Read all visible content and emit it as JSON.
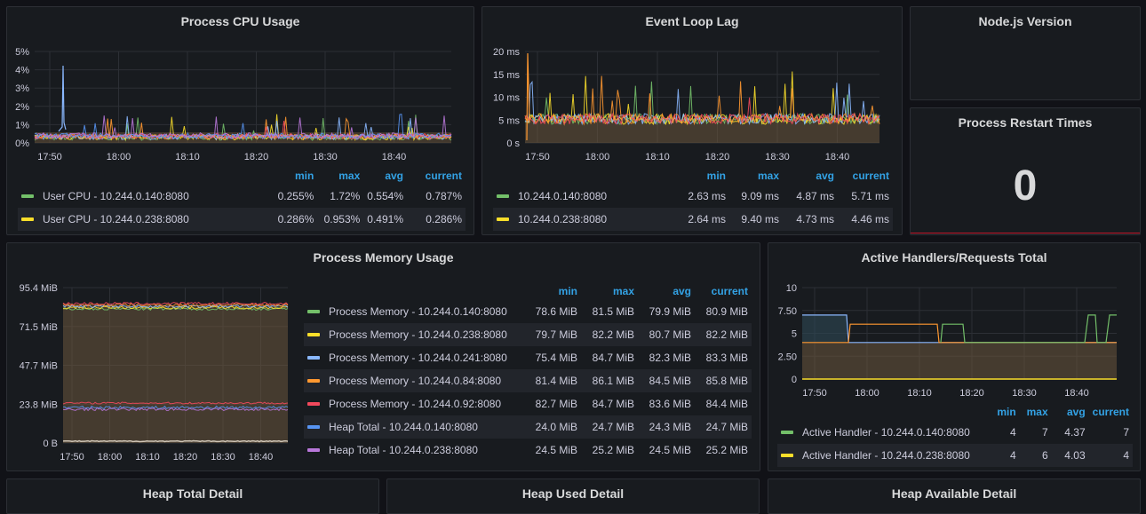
{
  "colors": {
    "green": "#73bf69",
    "yellow": "#fade2a",
    "cyan": "#8ab8ff",
    "orange": "#ff9830",
    "red": "#f2495c",
    "blue": "#5794f2",
    "purple": "#b877d9",
    "fillbrown": "#6b553c",
    "grid": "#2c2f35",
    "restart": "#c4162a"
  },
  "panels": {
    "cpu": {
      "title": "Process CPU Usage",
      "yticks": [
        "5%",
        "4%",
        "3%",
        "2%",
        "1%",
        "0%"
      ],
      "xticks": [
        "17:50",
        "18:00",
        "18:10",
        "18:20",
        "18:30",
        "18:40"
      ],
      "legend_headers": [
        "min",
        "max",
        "avg",
        "current"
      ],
      "legend": [
        {
          "name": "User CPU - 10.244.0.140:8080",
          "color": "green",
          "min": "0.255%",
          "max": "1.72%",
          "avg": "0.554%",
          "current": "0.787%"
        },
        {
          "name": "User CPU - 10.244.0.238:8080",
          "color": "yellow",
          "min": "0.286%",
          "max": "0.953%",
          "avg": "0.491%",
          "current": "0.286%"
        }
      ]
    },
    "lag": {
      "title": "Event Loop Lag",
      "yticks": [
        "20 ms",
        "15 ms",
        "10 ms",
        "5 ms",
        "0 s"
      ],
      "xticks": [
        "17:50",
        "18:00",
        "18:10",
        "18:20",
        "18:30",
        "18:40"
      ],
      "legend_headers": [
        "min",
        "max",
        "avg",
        "current"
      ],
      "legend": [
        {
          "name": "10.244.0.140:8080",
          "color": "green",
          "min": "2.63 ms",
          "max": "9.09 ms",
          "avg": "4.87 ms",
          "current": "5.71 ms"
        },
        {
          "name": "10.244.0.238:8080",
          "color": "yellow",
          "min": "2.64 ms",
          "max": "9.40 ms",
          "avg": "4.73 ms",
          "current": "4.46 ms"
        }
      ]
    },
    "nodever": {
      "title": "Node.js Version"
    },
    "restart": {
      "title": "Process Restart Times",
      "value": "0"
    },
    "mem": {
      "title": "Process Memory Usage",
      "yticks": [
        "95.4 MiB",
        "71.5 MiB",
        "47.7 MiB",
        "23.8 MiB",
        "0 B"
      ],
      "xticks": [
        "17:50",
        "18:00",
        "18:10",
        "18:20",
        "18:30",
        "18:40"
      ],
      "legend_headers": [
        "min",
        "max",
        "avg",
        "current"
      ],
      "legend": [
        {
          "name": "Process Memory - 10.244.0.140:8080",
          "color": "green",
          "min": "78.6 MiB",
          "max": "81.5 MiB",
          "avg": "79.9 MiB",
          "current": "80.9 MiB"
        },
        {
          "name": "Process Memory - 10.244.0.238:8080",
          "color": "yellow",
          "min": "79.7 MiB",
          "max": "82.2 MiB",
          "avg": "80.7 MiB",
          "current": "82.2 MiB"
        },
        {
          "name": "Process Memory - 10.244.0.241:8080",
          "color": "cyan",
          "min": "75.4 MiB",
          "max": "84.7 MiB",
          "avg": "82.3 MiB",
          "current": "83.3 MiB"
        },
        {
          "name": "Process Memory - 10.244.0.84:8080",
          "color": "orange",
          "min": "81.4 MiB",
          "max": "86.1 MiB",
          "avg": "84.5 MiB",
          "current": "85.8 MiB"
        },
        {
          "name": "Process Memory - 10.244.0.92:8080",
          "color": "red",
          "min": "82.7 MiB",
          "max": "84.7 MiB",
          "avg": "83.6 MiB",
          "current": "84.4 MiB"
        },
        {
          "name": "Heap Total - 10.244.0.140:8080",
          "color": "blue",
          "min": "24.0 MiB",
          "max": "24.7 MiB",
          "avg": "24.3 MiB",
          "current": "24.7 MiB"
        },
        {
          "name": "Heap Total - 10.244.0.238:8080",
          "color": "purple",
          "min": "24.5 MiB",
          "max": "25.2 MiB",
          "avg": "24.5 MiB",
          "current": "25.2 MiB"
        }
      ]
    },
    "handlers": {
      "title": "Active Handlers/Requests Total",
      "yticks": [
        "10",
        "7.50",
        "5",
        "2.50",
        "0"
      ],
      "xticks": [
        "17:50",
        "18:00",
        "18:10",
        "18:20",
        "18:30",
        "18:40"
      ],
      "legend_headers": [
        "min",
        "max",
        "avg",
        "current"
      ],
      "legend": [
        {
          "name": "Active Handler - 10.244.0.140:8080",
          "color": "green",
          "min": "4",
          "max": "7",
          "avg": "4.37",
          "current": "7"
        },
        {
          "name": "Active Handler - 10.244.0.238:8080",
          "color": "yellow",
          "min": "4",
          "max": "6",
          "avg": "4.03",
          "current": "4"
        }
      ]
    },
    "heaptotal": {
      "title": "Heap Total Detail"
    },
    "heapused": {
      "title": "Heap Used Detail"
    },
    "heapavail": {
      "title": "Heap Available Detail"
    }
  }
}
